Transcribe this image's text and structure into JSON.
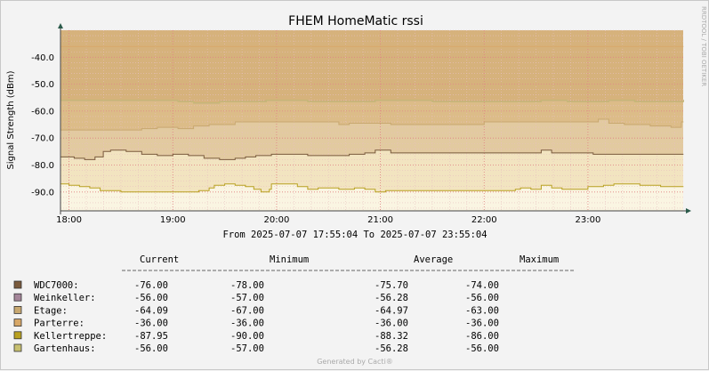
{
  "chart_data": {
    "type": "area",
    "title": "FHEM HomeMatic rssi",
    "ylabel": "Signal Strength (dBm)",
    "xlabel": "",
    "ylim": [
      -97,
      -30
    ],
    "yticks": [
      -40.0,
      -50.0,
      -60.0,
      -70.0,
      -80.0,
      -90.0
    ],
    "ytick_labels": [
      "-40.0",
      "-50.0",
      "-60.0",
      "-70.0",
      "-80.0",
      "-90.0"
    ],
    "x_range": [
      "17:55:04",
      "23:55:04"
    ],
    "xticks": [
      "18:00",
      "19:00",
      "20:00",
      "21:00",
      "22:00",
      "23:00"
    ],
    "x_hours": [
      18,
      19,
      20,
      21,
      22,
      23
    ],
    "x_start_hour": 17.9178,
    "x_end_hour": 23.9178,
    "grid": true,
    "period_text": "From 2025-07-07 17:55:04 To 2025-07-07 23:55:04",
    "legend_headers": [
      "Current",
      "Minimum",
      "Average",
      "Maximum"
    ],
    "series": [
      {
        "name": "WDC7000:",
        "color": "#7a5a3c",
        "current": "-76.00",
        "minimum": "-78.00",
        "average": "-75.70",
        "maximum": "-74.00",
        "values": [
          [
            17.92,
            -77
          ],
          [
            18.05,
            -77.5
          ],
          [
            18.15,
            -78
          ],
          [
            18.25,
            -77
          ],
          [
            18.33,
            -75
          ],
          [
            18.4,
            -74.5
          ],
          [
            18.55,
            -75
          ],
          [
            18.7,
            -76
          ],
          [
            18.85,
            -76.5
          ],
          [
            19.0,
            -76
          ],
          [
            19.15,
            -76.5
          ],
          [
            19.3,
            -77.5
          ],
          [
            19.45,
            -78
          ],
          [
            19.6,
            -77.5
          ],
          [
            19.7,
            -77
          ],
          [
            19.8,
            -76.5
          ],
          [
            19.95,
            -76
          ],
          [
            20.1,
            -76
          ],
          [
            20.3,
            -76.5
          ],
          [
            20.5,
            -76.5
          ],
          [
            20.7,
            -76
          ],
          [
            20.85,
            -75.5
          ],
          [
            20.95,
            -74.5
          ],
          [
            21.1,
            -75.5
          ],
          [
            21.4,
            -75.5
          ],
          [
            21.7,
            -75.5
          ],
          [
            22.0,
            -75.5
          ],
          [
            22.3,
            -75.5
          ],
          [
            22.5,
            -75.5
          ],
          [
            22.55,
            -74.5
          ],
          [
            22.65,
            -75.5
          ],
          [
            22.9,
            -75.5
          ],
          [
            23.0,
            -75.5
          ],
          [
            23.05,
            -76
          ],
          [
            23.35,
            -76
          ],
          [
            23.6,
            -76
          ],
          [
            23.92,
            -76
          ]
        ]
      },
      {
        "name": "Weinkeller:",
        "color": "#a5869a",
        "current": "-56.00",
        "minimum": "-57.00",
        "average": "-56.28",
        "maximum": "-56.00",
        "values": [
          [
            17.92,
            -56
          ],
          [
            18.2,
            -56
          ],
          [
            18.4,
            -56
          ],
          [
            18.8,
            -56
          ],
          [
            19.05,
            -56.5
          ],
          [
            19.2,
            -57
          ],
          [
            19.45,
            -56.5
          ],
          [
            19.7,
            -56.5
          ],
          [
            19.9,
            -56
          ],
          [
            20.1,
            -56
          ],
          [
            20.3,
            -56.5
          ],
          [
            20.5,
            -56.5
          ],
          [
            20.75,
            -56.5
          ],
          [
            20.95,
            -56
          ],
          [
            21.2,
            -56
          ],
          [
            21.5,
            -56.5
          ],
          [
            21.7,
            -56.5
          ],
          [
            21.9,
            -56.5
          ],
          [
            22.15,
            -56.5
          ],
          [
            22.4,
            -56.5
          ],
          [
            22.55,
            -56
          ],
          [
            22.8,
            -56.5
          ],
          [
            23.0,
            -56.5
          ],
          [
            23.2,
            -56
          ],
          [
            23.45,
            -56.5
          ],
          [
            23.7,
            -56.5
          ],
          [
            23.92,
            -56
          ]
        ]
      },
      {
        "name": "Etage:",
        "color": "#c8a870",
        "current": "-64.09",
        "minimum": "-67.00",
        "average": "-64.97",
        "maximum": "-63.00",
        "values": [
          [
            17.92,
            -67
          ],
          [
            18.3,
            -67
          ],
          [
            18.6,
            -67
          ],
          [
            18.7,
            -66.5
          ],
          [
            18.85,
            -66
          ],
          [
            19.05,
            -66.5
          ],
          [
            19.15,
            -66.5
          ],
          [
            19.2,
            -65.5
          ],
          [
            19.35,
            -65
          ],
          [
            19.6,
            -64
          ],
          [
            19.8,
            -64
          ],
          [
            20.0,
            -64
          ],
          [
            20.3,
            -64
          ],
          [
            20.5,
            -64
          ],
          [
            20.6,
            -65
          ],
          [
            20.7,
            -64.5
          ],
          [
            20.85,
            -64.5
          ],
          [
            21.1,
            -65
          ],
          [
            21.3,
            -65
          ],
          [
            21.6,
            -65
          ],
          [
            21.8,
            -65
          ],
          [
            22.0,
            -64
          ],
          [
            22.5,
            -64
          ],
          [
            22.8,
            -64
          ],
          [
            23.0,
            -64
          ],
          [
            23.1,
            -63
          ],
          [
            23.2,
            -64.5
          ],
          [
            23.35,
            -65
          ],
          [
            23.6,
            -65.5
          ],
          [
            23.8,
            -66
          ],
          [
            23.9,
            -64
          ],
          [
            23.92,
            -64
          ]
        ]
      },
      {
        "name": "Parterre:",
        "color": "#d8a868",
        "current": "-36.00",
        "minimum": "-36.00",
        "average": "-36.00",
        "maximum": "-36.00",
        "values": [
          [
            17.92,
            -36
          ],
          [
            23.92,
            -36
          ]
        ]
      },
      {
        "name": "Kellertreppe:",
        "color": "#b8a020",
        "current": "-87.95",
        "minimum": "-90.00",
        "average": "-88.32",
        "maximum": "-86.00",
        "values": [
          [
            17.92,
            -87
          ],
          [
            18.0,
            -87.5
          ],
          [
            18.1,
            -88
          ],
          [
            18.2,
            -88.5
          ],
          [
            18.3,
            -89.5
          ],
          [
            18.5,
            -90
          ],
          [
            18.7,
            -90
          ],
          [
            19.0,
            -90
          ],
          [
            19.15,
            -90
          ],
          [
            19.25,
            -89.5
          ],
          [
            19.35,
            -88.5
          ],
          [
            19.4,
            -87.5
          ],
          [
            19.5,
            -87
          ],
          [
            19.6,
            -87.5
          ],
          [
            19.7,
            -88
          ],
          [
            19.78,
            -89
          ],
          [
            19.85,
            -90
          ],
          [
            19.93,
            -89
          ],
          [
            19.95,
            -87
          ],
          [
            20.1,
            -87
          ],
          [
            20.2,
            -88
          ],
          [
            20.3,
            -89
          ],
          [
            20.4,
            -88.5
          ],
          [
            20.5,
            -88.5
          ],
          [
            20.6,
            -89
          ],
          [
            20.75,
            -88.5
          ],
          [
            20.85,
            -89
          ],
          [
            20.95,
            -90
          ],
          [
            21.05,
            -89.5
          ],
          [
            21.3,
            -89.5
          ],
          [
            21.6,
            -89.5
          ],
          [
            21.85,
            -89.5
          ],
          [
            22.2,
            -89.5
          ],
          [
            22.3,
            -89
          ],
          [
            22.35,
            -88.5
          ],
          [
            22.45,
            -89
          ],
          [
            22.55,
            -87.5
          ],
          [
            22.65,
            -88.5
          ],
          [
            22.75,
            -89
          ],
          [
            22.9,
            -89
          ],
          [
            23.0,
            -88
          ],
          [
            23.15,
            -87.5
          ],
          [
            23.25,
            -87
          ],
          [
            23.35,
            -87
          ],
          [
            23.5,
            -87.5
          ],
          [
            23.7,
            -88
          ],
          [
            23.8,
            -88
          ],
          [
            23.92,
            -88
          ]
        ]
      },
      {
        "name": "Gartenhaus:",
        "color": "#c8c070",
        "current": "-56.00",
        "minimum": "-57.00",
        "average": "-56.28",
        "maximum": "-56.00",
        "values": [
          [
            17.92,
            -56
          ],
          [
            18.2,
            -56
          ],
          [
            18.4,
            -56
          ],
          [
            18.8,
            -56
          ],
          [
            19.05,
            -56.5
          ],
          [
            19.2,
            -57
          ],
          [
            19.45,
            -56.5
          ],
          [
            19.7,
            -56.5
          ],
          [
            19.9,
            -56
          ],
          [
            20.1,
            -56
          ],
          [
            20.3,
            -56.5
          ],
          [
            20.5,
            -56.5
          ],
          [
            20.75,
            -56.5
          ],
          [
            20.95,
            -56
          ],
          [
            21.2,
            -56
          ],
          [
            21.5,
            -56.5
          ],
          [
            21.7,
            -56.5
          ],
          [
            21.9,
            -56.5
          ],
          [
            22.15,
            -56.5
          ],
          [
            22.4,
            -56.5
          ],
          [
            22.55,
            -56
          ],
          [
            22.8,
            -56.5
          ],
          [
            23.0,
            -56.5
          ],
          [
            23.2,
            -56
          ],
          [
            23.45,
            -56.5
          ],
          [
            23.7,
            -56.5
          ],
          [
            23.92,
            -56
          ]
        ]
      }
    ]
  },
  "side_label": "RRDTOOL / TOBI OETIKER",
  "footer": "Generated by Cacti®",
  "colors": {
    "background": "#f3f3f3",
    "plot_background": "#ffffff",
    "grid_major": "#e08080",
    "grid_minor": "#e8c0c0",
    "band_top": "#d6b27c",
    "band_mid": "#e2caa0",
    "band_low": "#f2e4c0",
    "band_bottom": "#faf5e2"
  }
}
